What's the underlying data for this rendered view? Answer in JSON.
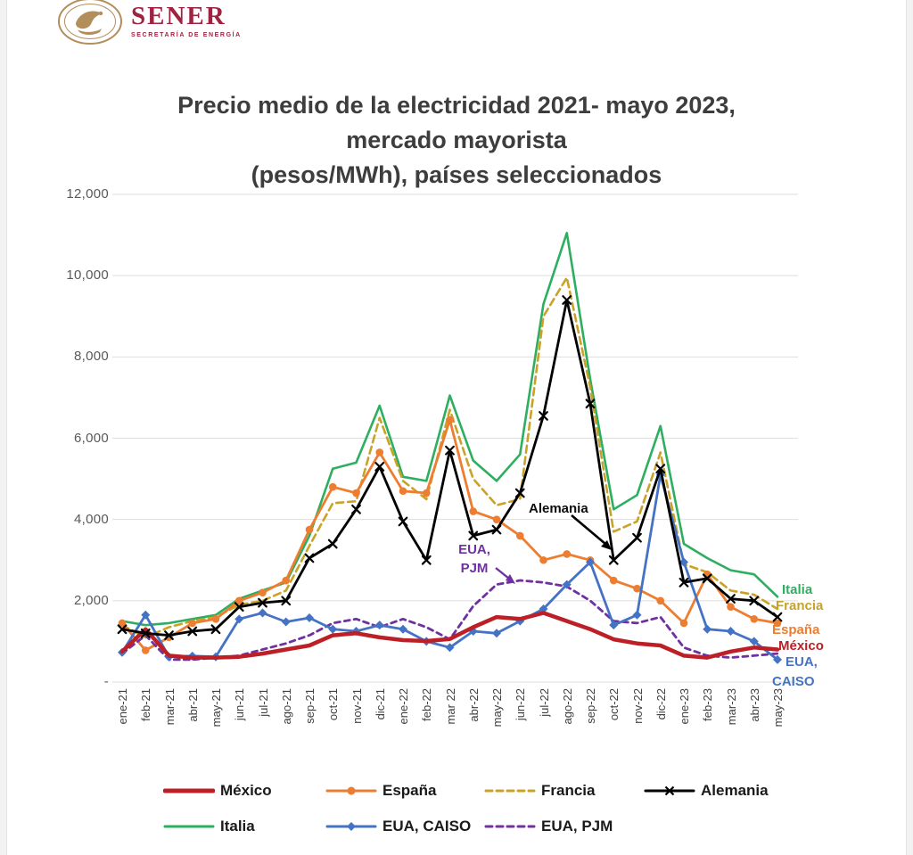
{
  "logo": {
    "brand": "SENER",
    "tagline": "SECRETARÍA DE ENERGÍA",
    "brand_color": "#9F2241",
    "seal_color": "#B38E5D"
  },
  "title_lines": {
    "line1": "Precio medio de la electricidad 2021- mayo 2023,",
    "line2": "mercado mayorista",
    "line3": "(pesos/MWh), países seleccionados"
  },
  "y_axis": {
    "tick_labels": [
      "12,000",
      "10,000",
      "8,000",
      "6,000",
      "4,000",
      "2,000",
      "-"
    ]
  },
  "annotations": {
    "alemania_label": "Alemania",
    "pjm_label_line1": "EUA,",
    "pjm_label_line2": "PJM"
  },
  "edge_labels": {
    "italia": "Italia",
    "francia": "Francia",
    "espana": "España",
    "mexico": "México",
    "eua": "EUA,",
    "caiso": "CAISO"
  },
  "legend": {
    "row1": [
      "México",
      "España",
      "Francia",
      "Alemania"
    ],
    "row2": [
      "Italia",
      "EUA, CAISO",
      "EUA, PJM"
    ]
  },
  "chart_data": {
    "type": "line",
    "title": "Precio medio de la electricidad 2021- mayo 2023, mercado mayorista (pesos/MWh), países seleccionados",
    "ylabel": "pesos/MWh",
    "xlabel": "",
    "ylim": [
      0,
      12000
    ],
    "y_tick_step": 2000,
    "grid": "horizontal",
    "legend_position": "bottom",
    "categories": [
      "ene-21",
      "feb-21",
      "mar-21",
      "abr-21",
      "may-21",
      "jun-21",
      "jul-21",
      "ago-21",
      "sep-21",
      "oct-21",
      "nov-21",
      "dic-21",
      "ene-22",
      "feb-22",
      "mar 22",
      "abr-22",
      "may-22",
      "jun-22",
      "jul-22",
      "ago-22",
      "sep-22",
      "oct-22",
      "nov-22",
      "dic-22",
      "ene-23",
      "feb-23",
      "mar-23",
      "abr-23",
      "may-23"
    ],
    "series": [
      {
        "name": "México",
        "color": "#BC2026",
        "style": "solid",
        "marker": "none",
        "width": 4.5,
        "values": [
          750,
          1300,
          650,
          600,
          600,
          620,
          700,
          800,
          900,
          1150,
          1200,
          1100,
          1030,
          1010,
          1060,
          1350,
          1600,
          1550,
          1700,
          1500,
          1300,
          1050,
          950,
          900,
          650,
          600,
          750,
          850,
          800
        ]
      },
      {
        "name": "España",
        "color": "#ED7D31",
        "style": "solid",
        "marker": "circle",
        "width": 2.8,
        "values": [
          1450,
          780,
          1100,
          1450,
          1550,
          2000,
          2200,
          2500,
          3750,
          4800,
          4650,
          5650,
          4700,
          4650,
          6450,
          4200,
          4000,
          3600,
          3000,
          3150,
          3000,
          2500,
          2300,
          2000,
          1450,
          2650,
          1850,
          1550,
          1450
        ]
      },
      {
        "name": "Francia",
        "color": "#C9A227",
        "style": "dashed",
        "marker": "none",
        "width": 2.6,
        "values": [
          1400,
          1100,
          1350,
          1500,
          1600,
          1900,
          2000,
          2250,
          3350,
          4400,
          4450,
          6500,
          4950,
          4500,
          6700,
          5000,
          4350,
          4500,
          9000,
          9950,
          7250,
          3700,
          3950,
          5650,
          2900,
          2700,
          2250,
          2150,
          1800
        ]
      },
      {
        "name": "Alemania",
        "color": "#000000",
        "style": "solid",
        "marker": "x",
        "width": 2.8,
        "values": [
          1300,
          1200,
          1150,
          1250,
          1300,
          1850,
          1950,
          2000,
          3050,
          3400,
          4250,
          5300,
          3950,
          3000,
          5700,
          3600,
          3750,
          4650,
          6550,
          9400,
          6850,
          3000,
          3550,
          5250,
          2450,
          2550,
          2050,
          2000,
          1600
        ]
      },
      {
        "name": "Italia",
        "color": "#2EAE5F",
        "style": "solid",
        "marker": "none",
        "width": 2.6,
        "values": [
          1500,
          1400,
          1450,
          1550,
          1650,
          2050,
          2250,
          2450,
          3600,
          5250,
          5400,
          6800,
          5050,
          4950,
          7050,
          5450,
          4950,
          5600,
          9300,
          11050,
          7450,
          4250,
          4600,
          6300,
          3400,
          3050,
          2750,
          2650,
          2100
        ]
      },
      {
        "name": "EUA, CAISO",
        "color": "#4472C4",
        "style": "solid",
        "marker": "diamond",
        "width": 2.8,
        "values": [
          730,
          1650,
          620,
          640,
          620,
          1550,
          1700,
          1480,
          1580,
          1300,
          1250,
          1400,
          1300,
          1000,
          850,
          1250,
          1200,
          1500,
          1800,
          2400,
          2950,
          1400,
          1650,
          5100,
          2950,
          1300,
          1250,
          1000,
          550
        ]
      },
      {
        "name": "EUA, PJM",
        "color": "#7030A0",
        "style": "dashed",
        "marker": "none",
        "width": 2.8,
        "values": [
          700,
          1150,
          550,
          550,
          600,
          650,
          800,
          950,
          1150,
          1450,
          1550,
          1350,
          1550,
          1350,
          1050,
          1870,
          2400,
          2500,
          2450,
          2350,
          2000,
          1500,
          1450,
          1600,
          850,
          650,
          600,
          650,
          700
        ]
      }
    ]
  }
}
